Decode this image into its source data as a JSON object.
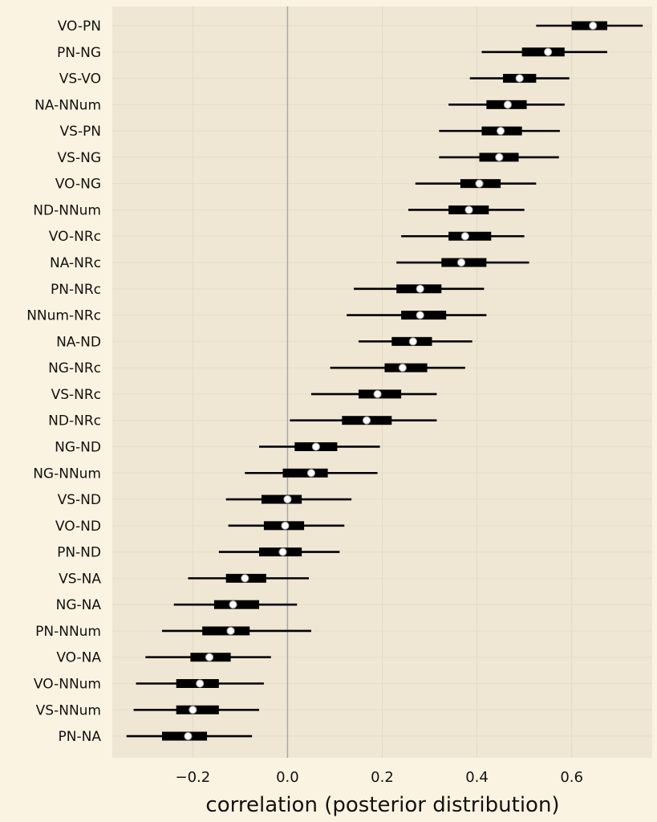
{
  "chart_data": {
    "type": "forest",
    "xlabel": "correlation (posterior distribution)",
    "xlim": [
      -0.37,
      0.77
    ],
    "xticks": [
      -0.2,
      0.0,
      0.2,
      0.4,
      0.6
    ],
    "xtick_labels": [
      "−0.2",
      "0.0",
      "0.2",
      "0.4",
      "0.6"
    ],
    "reference_line": 0.0,
    "grid": true,
    "colors": {
      "plot_bg": "#efe6d3",
      "page_bg": "#fbf3e1",
      "mark": "#000000",
      "median": "#ffffff",
      "refline": "#a8a8a8"
    },
    "rows": [
      {
        "label": "VO-PN",
        "low": 0.525,
        "q1": 0.6,
        "median": 0.645,
        "q3": 0.675,
        "high": 0.75
      },
      {
        "label": "PN-NG",
        "low": 0.41,
        "q1": 0.495,
        "median": 0.55,
        "q3": 0.585,
        "high": 0.675
      },
      {
        "label": "VS-VO",
        "low": 0.385,
        "q1": 0.455,
        "median": 0.49,
        "q3": 0.525,
        "high": 0.595
      },
      {
        "label": "NA-NNum",
        "low": 0.34,
        "q1": 0.42,
        "median": 0.465,
        "q3": 0.505,
        "high": 0.585
      },
      {
        "label": "VS-PN",
        "low": 0.32,
        "q1": 0.41,
        "median": 0.45,
        "q3": 0.495,
        "high": 0.575
      },
      {
        "label": "VS-NG",
        "low": 0.32,
        "q1": 0.405,
        "median": 0.447,
        "q3": 0.488,
        "high": 0.573
      },
      {
        "label": "VO-NG",
        "low": 0.27,
        "q1": 0.365,
        "median": 0.405,
        "q3": 0.45,
        "high": 0.525
      },
      {
        "label": "ND-NNum",
        "low": 0.255,
        "q1": 0.34,
        "median": 0.383,
        "q3": 0.425,
        "high": 0.5
      },
      {
        "label": "VO-NRc",
        "low": 0.24,
        "q1": 0.34,
        "median": 0.375,
        "q3": 0.43,
        "high": 0.5
      },
      {
        "label": "NA-NRc",
        "low": 0.23,
        "q1": 0.325,
        "median": 0.367,
        "q3": 0.42,
        "high": 0.51
      },
      {
        "label": "PN-NRc",
        "low": 0.14,
        "q1": 0.23,
        "median": 0.28,
        "q3": 0.325,
        "high": 0.415
      },
      {
        "label": "NNum-NRc",
        "low": 0.125,
        "q1": 0.24,
        "median": 0.28,
        "q3": 0.335,
        "high": 0.42
      },
      {
        "label": "NA-ND",
        "low": 0.15,
        "q1": 0.22,
        "median": 0.265,
        "q3": 0.305,
        "high": 0.39
      },
      {
        "label": "NG-NRc",
        "low": 0.09,
        "q1": 0.205,
        "median": 0.243,
        "q3": 0.295,
        "high": 0.375
      },
      {
        "label": "VS-NRc",
        "low": 0.05,
        "q1": 0.15,
        "median": 0.19,
        "q3": 0.24,
        "high": 0.315
      },
      {
        "label": "ND-NRc",
        "low": 0.005,
        "q1": 0.115,
        "median": 0.167,
        "q3": 0.22,
        "high": 0.315
      },
      {
        "label": "NG-ND",
        "low": -0.06,
        "q1": 0.015,
        "median": 0.06,
        "q3": 0.105,
        "high": 0.195
      },
      {
        "label": "NG-NNum",
        "low": -0.09,
        "q1": -0.01,
        "median": 0.05,
        "q3": 0.085,
        "high": 0.19
      },
      {
        "label": "VS-ND",
        "low": -0.13,
        "q1": -0.055,
        "median": 0.0,
        "q3": 0.03,
        "high": 0.135
      },
      {
        "label": "VO-ND",
        "low": -0.125,
        "q1": -0.05,
        "median": -0.005,
        "q3": 0.035,
        "high": 0.12
      },
      {
        "label": "PN-ND",
        "low": -0.145,
        "q1": -0.06,
        "median": -0.01,
        "q3": 0.03,
        "high": 0.11
      },
      {
        "label": "VS-NA",
        "low": -0.21,
        "q1": -0.13,
        "median": -0.09,
        "q3": -0.045,
        "high": 0.045
      },
      {
        "label": "NG-NA",
        "low": -0.24,
        "q1": -0.155,
        "median": -0.115,
        "q3": -0.06,
        "high": 0.02
      },
      {
        "label": "PN-NNum",
        "low": -0.265,
        "q1": -0.18,
        "median": -0.12,
        "q3": -0.08,
        "high": 0.05
      },
      {
        "label": "VO-NA",
        "low": -0.3,
        "q1": -0.205,
        "median": -0.165,
        "q3": -0.12,
        "high": -0.035
      },
      {
        "label": "VO-NNum",
        "low": -0.32,
        "q1": -0.235,
        "median": -0.185,
        "q3": -0.145,
        "high": -0.05
      },
      {
        "label": "VS-NNum",
        "low": -0.325,
        "q1": -0.235,
        "median": -0.2,
        "q3": -0.145,
        "high": -0.06
      },
      {
        "label": "PN-NA",
        "low": -0.34,
        "q1": -0.265,
        "median": -0.21,
        "q3": -0.17,
        "high": -0.075
      }
    ]
  }
}
